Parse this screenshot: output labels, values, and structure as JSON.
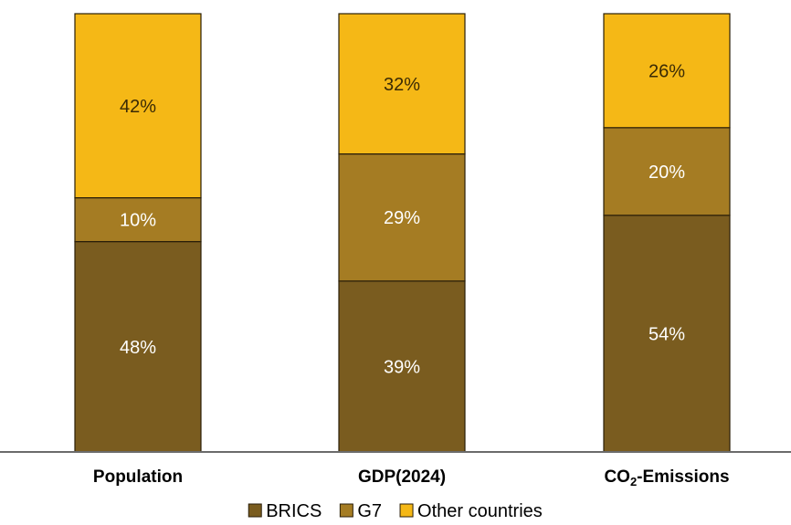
{
  "chart_data": {
    "type": "bar",
    "stacked": true,
    "orientation": "vertical",
    "categories": [
      {
        "base": "Population",
        "sub": "",
        "suffix": ""
      },
      {
        "base": "GDP(2024)",
        "sub": "",
        "suffix": ""
      },
      {
        "base": "CO",
        "sub": "2",
        "suffix": "-Emissions"
      }
    ],
    "series": [
      {
        "name": "BRICS",
        "values": [
          48,
          39,
          54
        ],
        "labels": [
          "48%",
          "39%",
          "54%"
        ],
        "color": "#7a5c1f",
        "label_color": "#ffffff"
      },
      {
        "name": "G7",
        "values": [
          10,
          29,
          20
        ],
        "labels": [
          "10%",
          "29%",
          "20%"
        ],
        "color": "#a57c23",
        "label_color": "#ffffff"
      },
      {
        "name": "Other countries",
        "values": [
          42,
          32,
          26
        ],
        "labels": [
          "42%",
          "32%",
          "26%"
        ],
        "color": "#f5b816",
        "label_color": "#3a2a05"
      }
    ],
    "ylim": [
      0,
      100
    ],
    "legend_position": "bottom",
    "grid": false,
    "unit": "%"
  }
}
